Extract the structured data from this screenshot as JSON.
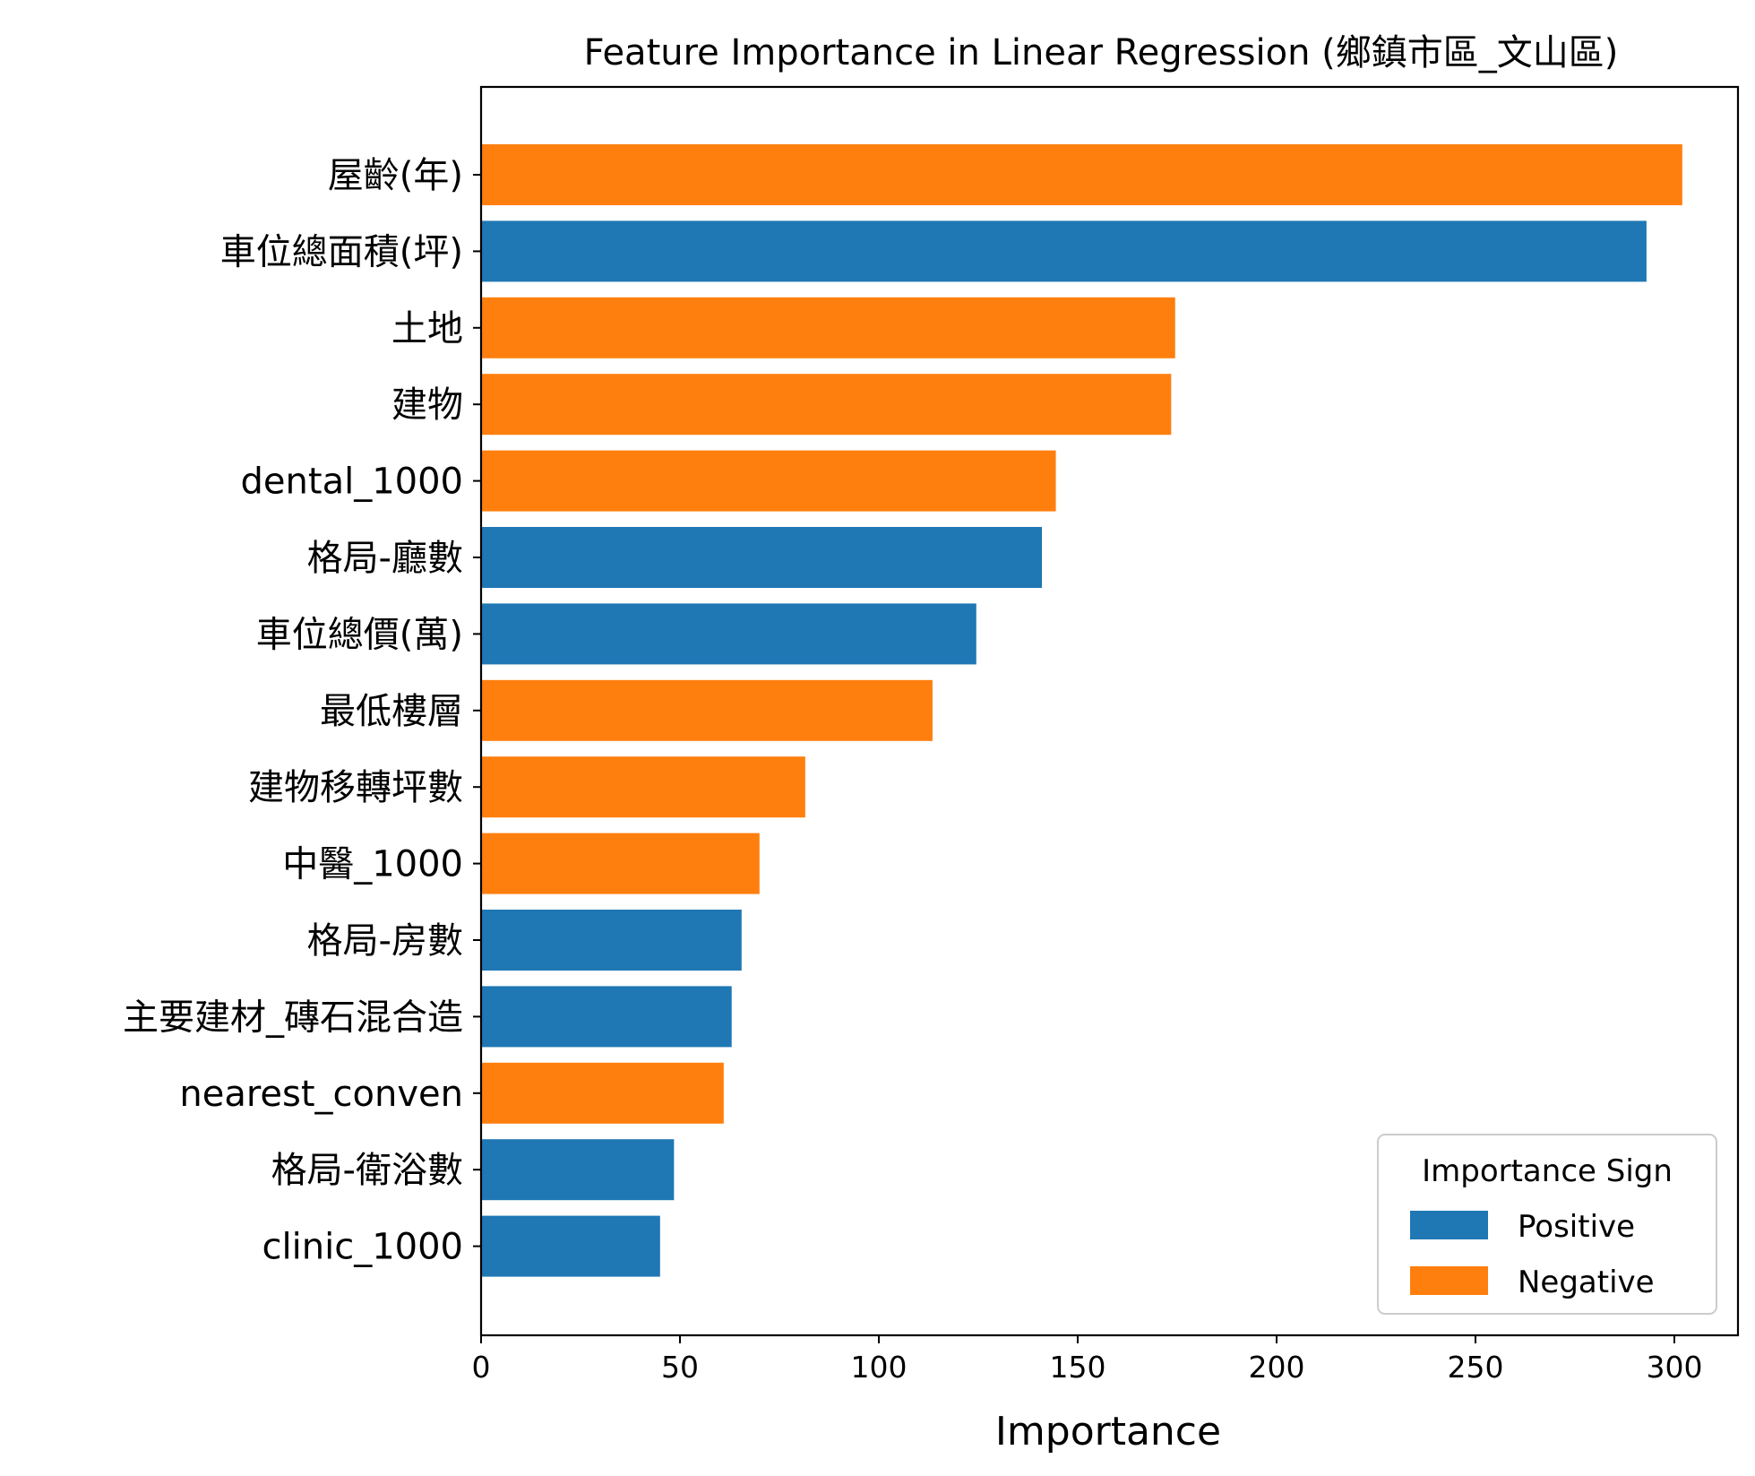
{
  "chart_data": {
    "type": "bar",
    "orientation": "horizontal",
    "title": "Feature Importance in Linear Regression (鄉鎮市區_文山區)",
    "xlabel": "Importance",
    "ylabel": "",
    "xlim": [
      0,
      316
    ],
    "xticks": [
      0,
      50,
      100,
      150,
      200,
      250,
      300
    ],
    "grid": false,
    "legend": {
      "title": "Importance Sign",
      "placement": "lower right",
      "entries": [
        {
          "label": "Positive",
          "color": "#1f77b4"
        },
        {
          "label": "Negative",
          "color": "#ff7f0e"
        }
      ]
    },
    "categories": [
      "屋齡(年)",
      "車位總面積(坪)",
      "土地",
      "建物",
      "dental_1000",
      "格局-廳數",
      "車位總價(萬)",
      "最低樓層",
      "建物移轉坪數",
      "中醫_1000",
      "格局-房數",
      "主要建材_磚石混合造",
      "nearest_conven",
      "格局-衛浴數",
      "clinic_1000"
    ],
    "values": [
      302,
      293,
      174.5,
      173.5,
      144.5,
      141,
      124.5,
      113.5,
      81.5,
      70,
      65.5,
      63,
      61,
      48.5,
      45
    ],
    "signs": [
      "Negative",
      "Positive",
      "Negative",
      "Negative",
      "Negative",
      "Positive",
      "Positive",
      "Negative",
      "Negative",
      "Negative",
      "Positive",
      "Positive",
      "Negative",
      "Positive",
      "Positive"
    ]
  }
}
